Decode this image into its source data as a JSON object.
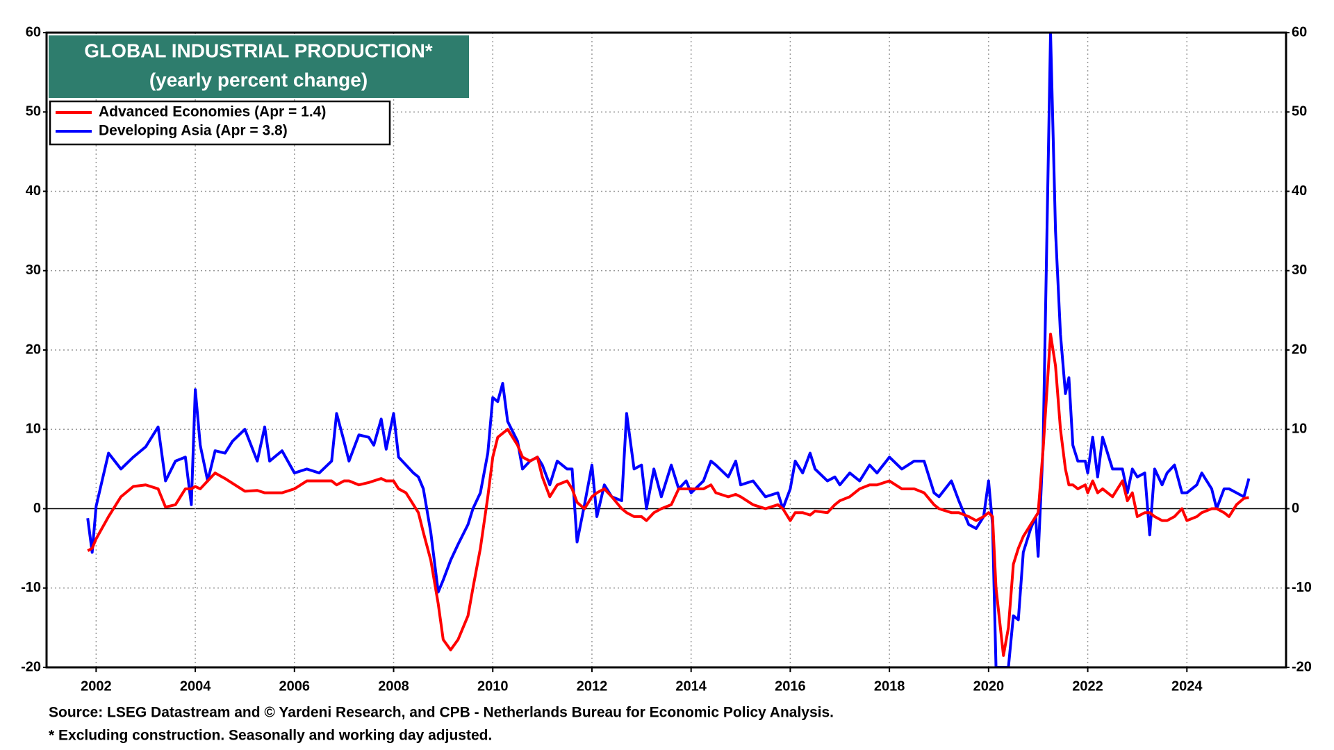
{
  "chart_data": {
    "type": "line",
    "title": "GLOBAL INDUSTRIAL PRODUCTION*",
    "subtitle": "(yearly percent change)",
    "notes": [
      "Source: LSEG Datastream and © Yardeni Research, and CPB - Netherlands Bureau for Economic Policy Analysis.",
      "* Excluding construction. Seasonally and working day adjusted."
    ],
    "xlim": [
      2001,
      2026
    ],
    "xticks": [
      2002,
      2004,
      2006,
      2008,
      2010,
      2012,
      2014,
      2016,
      2018,
      2020,
      2022,
      2024
    ],
    "ylim": [
      -20,
      60
    ],
    "yticks": [
      -20,
      -10,
      0,
      10,
      20,
      30,
      40,
      50,
      60
    ],
    "grid": true,
    "legend": "upper left",
    "x": [
      2001.83,
      2001.92,
      2002.0,
      2002.25,
      2002.5,
      2002.75,
      2003.0,
      2003.25,
      2003.4,
      2003.6,
      2003.8,
      2003.92,
      2004.0,
      2004.1,
      2004.25,
      2004.4,
      2004.6,
      2004.75,
      2005.0,
      2005.25,
      2005.4,
      2005.5,
      2005.75,
      2006.0,
      2006.25,
      2006.5,
      2006.75,
      2006.85,
      2007.0,
      2007.1,
      2007.3,
      2007.5,
      2007.6,
      2007.75,
      2007.85,
      2008.0,
      2008.1,
      2008.25,
      2008.4,
      2008.5,
      2008.6,
      2008.75,
      2008.9,
      2009.0,
      2009.15,
      2009.3,
      2009.5,
      2009.6,
      2009.75,
      2009.9,
      2010.0,
      2010.1,
      2010.2,
      2010.3,
      2010.5,
      2010.6,
      2010.75,
      2010.9,
      2011.0,
      2011.15,
      2011.3,
      2011.5,
      2011.6,
      2011.7,
      2011.85,
      2012.0,
      2012.1,
      2012.25,
      2012.4,
      2012.6,
      2012.7,
      2012.85,
      2013.0,
      2013.1,
      2013.25,
      2013.4,
      2013.6,
      2013.75,
      2013.9,
      2014.0,
      2014.25,
      2014.4,
      2014.5,
      2014.75,
      2014.9,
      2015.0,
      2015.25,
      2015.5,
      2015.75,
      2015.85,
      2016.0,
      2016.1,
      2016.25,
      2016.4,
      2016.5,
      2016.75,
      2016.9,
      2017.0,
      2017.2,
      2017.4,
      2017.6,
      2017.75,
      2018.0,
      2018.25,
      2018.5,
      2018.7,
      2018.9,
      2019.0,
      2019.25,
      2019.4,
      2019.6,
      2019.75,
      2019.9,
      2020.0,
      2020.08,
      2020.15,
      2020.3,
      2020.4,
      2020.5,
      2020.6,
      2020.7,
      2020.85,
      2020.95,
      2021.0,
      2021.1,
      2021.25,
      2021.35,
      2021.45,
      2021.55,
      2021.62,
      2021.7,
      2021.8,
      2021.95,
      2022.0,
      2022.1,
      2022.2,
      2022.3,
      2022.5,
      2022.7,
      2022.8,
      2022.9,
      2023.0,
      2023.15,
      2023.25,
      2023.35,
      2023.5,
      2023.6,
      2023.75,
      2023.9,
      2024.0,
      2024.2,
      2024.3,
      2024.5,
      2024.6,
      2024.75,
      2024.85,
      2025.0,
      2025.15,
      2025.25
    ],
    "series": [
      {
        "name": "Advanced Economies (Apr = 1.4)",
        "color": "#ff0000",
        "values": [
          -5.3,
          -5.0,
          -3.8,
          -1.0,
          1.5,
          2.8,
          3.0,
          2.5,
          0.2,
          0.5,
          2.5,
          2.5,
          2.8,
          2.5,
          3.5,
          4.5,
          3.8,
          3.2,
          2.2,
          2.3,
          2.0,
          2.0,
          2.0,
          2.5,
          3.5,
          3.5,
          3.5,
          3.0,
          3.5,
          3.5,
          3.0,
          3.3,
          3.5,
          3.8,
          3.5,
          3.5,
          2.5,
          2.0,
          0.5,
          -0.5,
          -3.0,
          -6.5,
          -12,
          -16.5,
          -17.8,
          -16.5,
          -13.5,
          -10.0,
          -5.0,
          1.5,
          6.5,
          9.0,
          9.5,
          10.0,
          8.0,
          6.5,
          6.0,
          6.5,
          4.0,
          1.5,
          3.0,
          3.5,
          2.5,
          0.8,
          0.0,
          1.5,
          2.0,
          2.5,
          1.5,
          0.0,
          -0.5,
          -1.0,
          -1.0,
          -1.5,
          -0.5,
          0.0,
          0.5,
          2.5,
          2.5,
          2.5,
          2.5,
          3.0,
          2.0,
          1.5,
          1.8,
          1.5,
          0.5,
          0.0,
          0.5,
          0.0,
          -1.5,
          -0.5,
          -0.5,
          -0.8,
          -0.3,
          -0.5,
          0.5,
          1.0,
          1.5,
          2.5,
          3.0,
          3.0,
          3.5,
          2.5,
          2.5,
          2.0,
          0.5,
          0.0,
          -0.5,
          -0.5,
          -1.0,
          -1.5,
          -1.0,
          -0.5,
          -1.0,
          -10,
          -18.5,
          -15,
          -7,
          -5,
          -3.5,
          -2,
          -1,
          -0.5,
          7.5,
          22.0,
          18,
          10,
          5,
          3,
          3,
          2.5,
          3,
          2,
          3.5,
          2,
          2.5,
          1.5,
          3.5,
          1,
          2,
          -1,
          -0.5,
          -0.5,
          -1,
          -1.5,
          -1.5,
          -1,
          0,
          -1.5,
          -1,
          -0.5,
          0,
          0,
          -0.5,
          -1,
          0.5,
          1.3,
          1.4
        ]
      },
      {
        "name": "Developing Asia (Apr = 3.8)",
        "color": "#0000ff",
        "values": [
          -1.2,
          -5.5,
          0.3,
          7.0,
          5.0,
          6.5,
          7.8,
          10.3,
          3.5,
          6.0,
          6.5,
          0.5,
          15.0,
          8.0,
          3.5,
          7.3,
          7.0,
          8.5,
          10.0,
          6.0,
          10.3,
          6.0,
          7.3,
          4.5,
          5.0,
          4.5,
          6.0,
          12.0,
          8.5,
          6.0,
          9.3,
          9.0,
          8.0,
          11.3,
          7.5,
          12.0,
          6.5,
          5.5,
          4.5,
          4.0,
          2.5,
          -3.0,
          -10.5,
          -9.0,
          -6.5,
          -4.5,
          -2.0,
          0.0,
          2.0,
          7.0,
          14.0,
          13.5,
          15.8,
          11.0,
          8.5,
          5.0,
          6.0,
          6.5,
          5.5,
          3.0,
          6.0,
          5.0,
          5.0,
          -4.2,
          0.5,
          5.5,
          -1.0,
          3.0,
          1.5,
          1.0,
          12.0,
          5.0,
          5.5,
          0.0,
          5.0,
          1.5,
          5.5,
          2.5,
          3.5,
          2.0,
          3.5,
          6.0,
          5.5,
          4.0,
          6.0,
          3.0,
          3.5,
          1.5,
          2.0,
          0.0,
          2.5,
          6.0,
          4.5,
          7.0,
          5.0,
          3.5,
          4.0,
          3.0,
          4.5,
          3.5,
          5.5,
          4.5,
          6.5,
          5.0,
          6.0,
          6.0,
          2.0,
          1.5,
          3.5,
          1.0,
          -2.0,
          -2.5,
          -1.0,
          3.5,
          -2.0,
          -20,
          -20,
          -20,
          -13.5,
          -14,
          -5.5,
          -2.5,
          -1,
          -6,
          8,
          60.0,
          35,
          22,
          14.5,
          16.5,
          8,
          6,
          6,
          4.5,
          9,
          4,
          9,
          5,
          5,
          2,
          5,
          4,
          4.5,
          -3.3,
          5,
          3,
          4.5,
          5.5,
          2,
          2,
          3,
          4.5,
          2.5,
          0,
          2.5,
          2.5,
          2,
          1.5,
          3.8
        ]
      }
    ]
  }
}
